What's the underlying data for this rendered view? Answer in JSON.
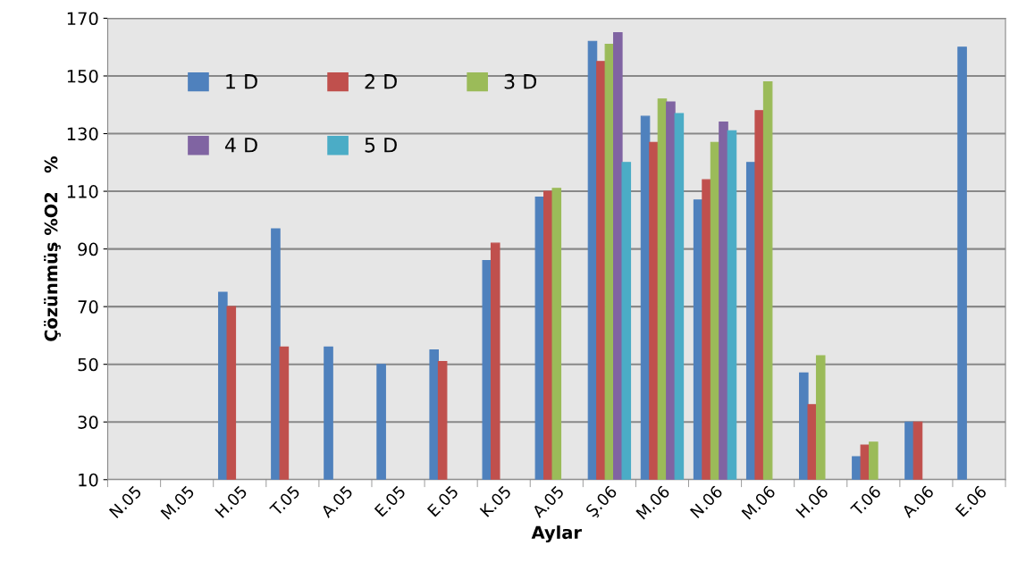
{
  "chart_data": {
    "type": "bar",
    "xlabel": "Aylar",
    "ylabel": "Çözünmüş %O2   %",
    "categories": [
      "N.05",
      "M.05",
      "H.05",
      "T.05",
      "A.05",
      "E.05",
      "E.05",
      "K.05",
      "A.05",
      "Ş.06",
      "M.06",
      "N.06",
      "M.06",
      "H.06",
      "T.06",
      "A.06",
      "E.06"
    ],
    "series": [
      {
        "name": "1 D",
        "color": "#4f81bd",
        "values": [
          null,
          null,
          75,
          97,
          56,
          50,
          55,
          86,
          108,
          162,
          136,
          107,
          120,
          47,
          18,
          30,
          160
        ]
      },
      {
        "name": "2 D",
        "color": "#c0504d",
        "values": [
          null,
          null,
          70,
          56,
          null,
          null,
          51,
          92,
          110,
          155,
          127,
          114,
          138,
          36,
          22,
          30,
          null
        ]
      },
      {
        "name": "3 D",
        "color": "#9bbb59",
        "values": [
          null,
          null,
          null,
          null,
          null,
          null,
          null,
          null,
          111,
          161,
          142,
          127,
          148,
          53,
          23,
          null,
          null
        ]
      },
      {
        "name": "4 D",
        "color": "#8064a2",
        "values": [
          null,
          null,
          null,
          null,
          null,
          null,
          null,
          null,
          null,
          165,
          141,
          134,
          null,
          null,
          null,
          null,
          null
        ]
      },
      {
        "name": "5 D",
        "color": "#4bacc6",
        "values": [
          null,
          null,
          null,
          null,
          null,
          null,
          null,
          null,
          null,
          120,
          137,
          131,
          null,
          null,
          null,
          null,
          null
        ]
      }
    ],
    "ylim": [
      10,
      170
    ],
    "yticks": [
      10,
      30,
      50,
      70,
      90,
      110,
      130,
      150,
      170
    ],
    "grid": "y",
    "legend": "top left"
  }
}
